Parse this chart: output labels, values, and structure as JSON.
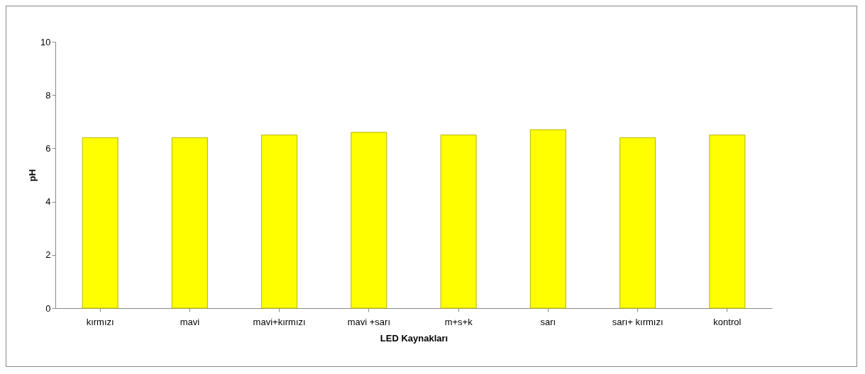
{
  "chart_data": {
    "type": "bar",
    "xlabel": "LED Kaynakları",
    "ylabel": "pH",
    "categories": [
      "kırmızı",
      "mavi",
      "mavi+kırmızı",
      "mavi +sarı",
      "m+s+k",
      "sarı",
      "sarı+ kırmızı",
      "kontrol"
    ],
    "values": [
      6.4,
      6.4,
      6.5,
      6.6,
      6.5,
      6.7,
      6.4,
      6.5
    ],
    "color": "#ffff00",
    "ylim": [
      0,
      10
    ],
    "yticks": [
      0,
      2,
      4,
      6,
      8,
      10
    ],
    "grid": false
  }
}
